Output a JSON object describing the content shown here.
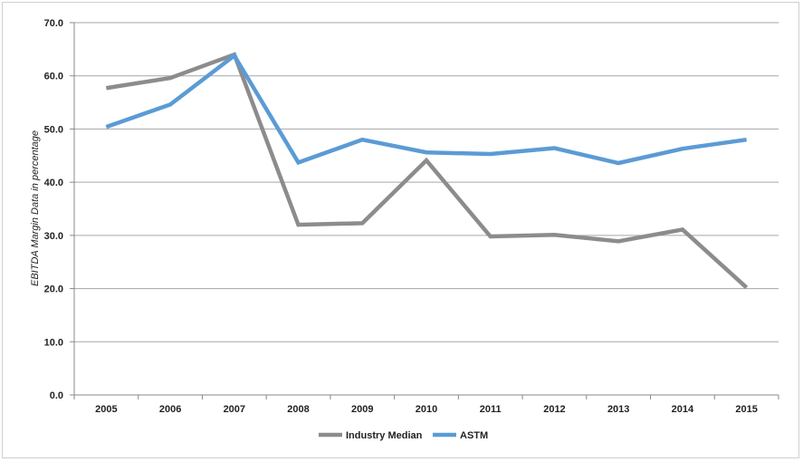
{
  "chart_data": {
    "type": "line",
    "title": "",
    "xlabel": "",
    "ylabel": "EBITDA Margin Data in percentage",
    "categories": [
      "2005",
      "2006",
      "2007",
      "2008",
      "2009",
      "2010",
      "2011",
      "2012",
      "2013",
      "2014",
      "2015"
    ],
    "yticks": [
      "0.0",
      "10.0",
      "20.0",
      "30.0",
      "40.0",
      "50.0",
      "60.0",
      "70.0"
    ],
    "ylim": [
      0,
      70
    ],
    "grid": "horizontal",
    "legend_position": "bottom",
    "series": [
      {
        "name": "Industry Median",
        "color": "#8c8c8c",
        "values": [
          57.7,
          59.6,
          64.0,
          32.0,
          32.3,
          44.1,
          29.8,
          30.1,
          28.9,
          31.1,
          20.2
        ]
      },
      {
        "name": "ASTM",
        "color": "#5b9bd5",
        "values": [
          50.4,
          54.6,
          63.8,
          43.7,
          48.0,
          45.6,
          45.3,
          46.4,
          43.6,
          46.3,
          48.0
        ]
      }
    ]
  }
}
